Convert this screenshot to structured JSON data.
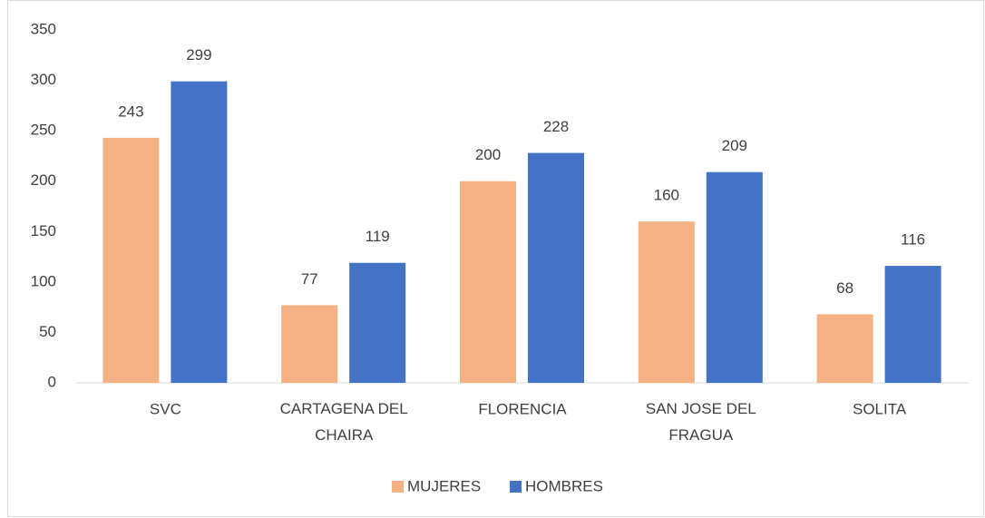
{
  "chart_data": {
    "type": "bar",
    "categories": [
      "SVC",
      "CARTAGENA DEL CHAIRA",
      "FLORENCIA",
      "SAN JOSE DEL FRAGUA",
      "SOLITA"
    ],
    "series": [
      {
        "name": "MUJERES",
        "color": "#f4b183",
        "values": [
          243,
          77,
          200,
          160,
          68
        ]
      },
      {
        "name": "HOMBRES",
        "color": "#4472c4",
        "values": [
          299,
          119,
          228,
          209,
          116
        ]
      }
    ],
    "ylim": [
      0,
      350
    ],
    "yticks": [
      0,
      50,
      100,
      150,
      200,
      250,
      300,
      350
    ],
    "grid": false,
    "legend": "bottom"
  }
}
